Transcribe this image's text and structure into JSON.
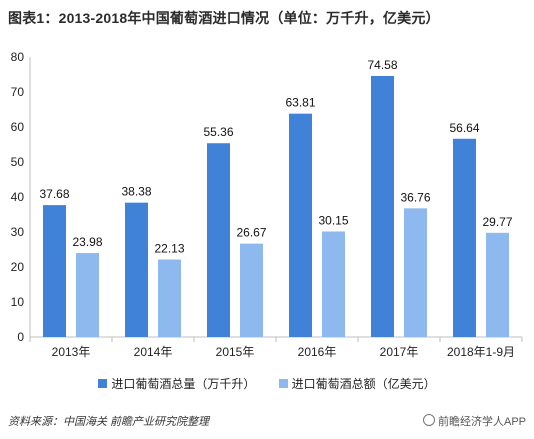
{
  "title": "图表1：2013-2018年中国葡萄酒进口情况（单位：万千升，亿美元）",
  "source": "资料来源：中国海关 前瞻产业研究院整理",
  "brand": "前瞻经济学人APP",
  "chart_data": {
    "type": "bar",
    "categories": [
      "2013年",
      "2014年",
      "2015年",
      "2016年",
      "2017年",
      "2018年1-9月"
    ],
    "series": [
      {
        "name": "进口葡萄酒总量（万千升）",
        "values": [
          37.68,
          38.38,
          55.36,
          63.81,
          74.58,
          56.64
        ],
        "color": "#3f82d8"
      },
      {
        "name": "进口葡萄酒总额（亿美元）",
        "values": [
          23.98,
          22.13,
          26.67,
          30.15,
          36.76,
          29.77
        ],
        "color": "#8db9ee"
      }
    ],
    "ylim": [
      0,
      80
    ],
    "yticks": [
      0,
      10,
      20,
      30,
      40,
      50,
      60,
      70,
      80
    ],
    "legend_position": "bottom",
    "grid": false
  }
}
